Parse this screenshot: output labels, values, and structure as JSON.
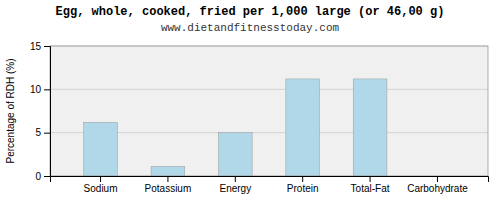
{
  "chart_data": {
    "type": "bar",
    "title": "Egg, whole, cooked, fried per 1,000 large (or 46,00 g)",
    "subtitle": "www.dietandfitnesstoday.com",
    "categories": [
      "Sodium",
      "Potassium",
      "Energy",
      "Protein",
      "Total-Fat",
      "Carbohydrate"
    ],
    "values": [
      6.2,
      1.1,
      5.0,
      11.2,
      11.2,
      0.0
    ],
    "color": "#b0d8e8",
    "ylabel": "Percentage of RDH (%)",
    "ylim": [
      0,
      15
    ],
    "yticks": [
      0,
      5,
      10,
      15
    ],
    "grid": true
  }
}
